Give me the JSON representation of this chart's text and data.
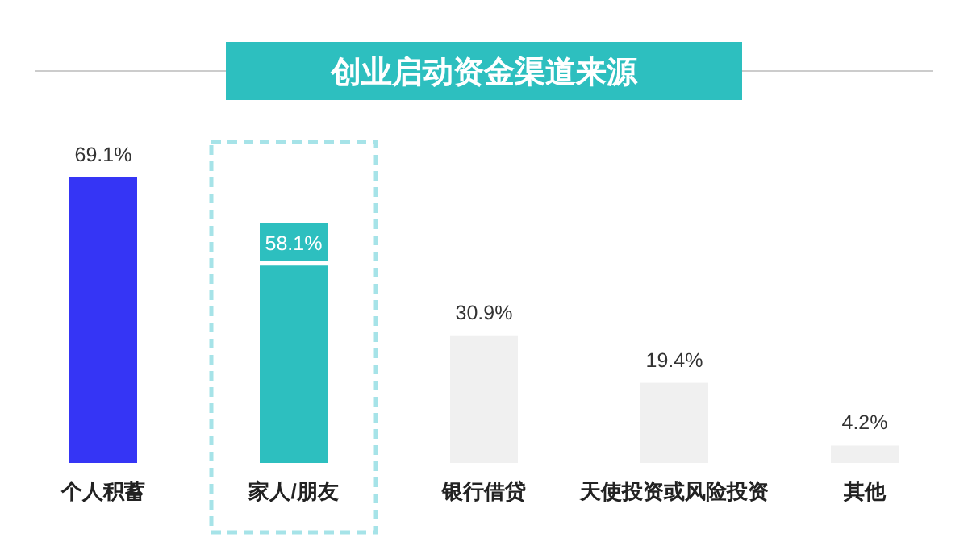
{
  "chart_data": {
    "type": "bar",
    "title": "创业启动资金渠道来源",
    "categories": [
      "个人积蓄",
      "家人/朋友",
      "银行借贷",
      "天使投资或风险投资",
      "其他"
    ],
    "values": [
      69.1,
      58.1,
      30.9,
      19.4,
      4.2
    ],
    "value_labels": [
      "69.1%",
      "58.1%",
      "30.9%",
      "19.4%",
      "4.2%"
    ],
    "colors": [
      "#3535f5",
      "#2dbfbf",
      "#f0f0f0",
      "#f0f0f0",
      "#f0f0f0"
    ]
  }
}
